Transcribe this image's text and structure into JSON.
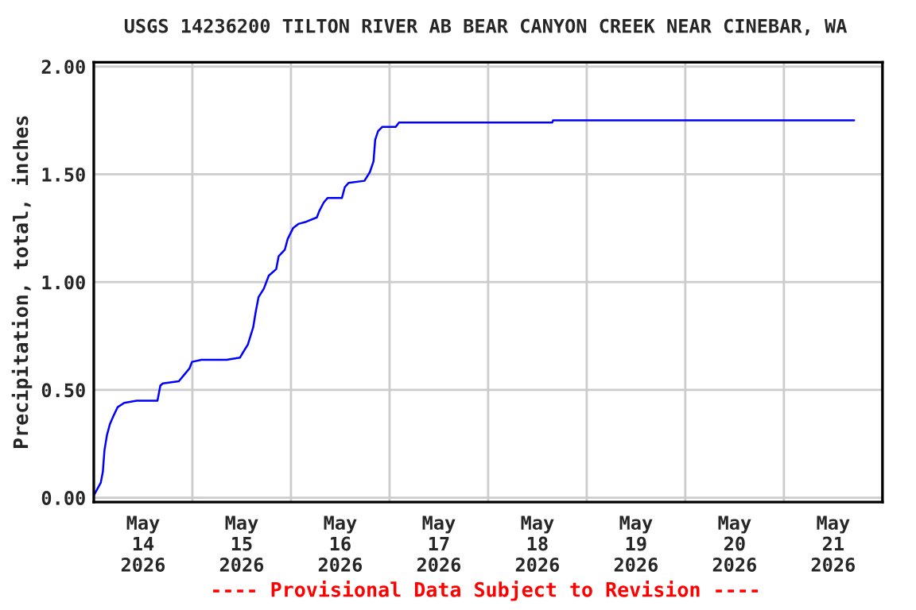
{
  "chart_data": {
    "type": "line",
    "title": "USGS 14236200 TILTON RIVER AB BEAR CANYON CREEK NEAR CINEBAR, WA",
    "ylabel": "Precipitation, total, inches",
    "annotations": [
      "---- Provisional Data Subject to Revision ----"
    ],
    "series": [
      {
        "color": "#0000ff",
        "x": [
          "2026-05-14T00:00",
          "2026-05-14T01:42",
          "2026-05-14T02:12",
          "2026-05-14T02:36",
          "2026-05-14T03:12",
          "2026-05-14T03:54",
          "2026-05-14T04:48",
          "2026-05-14T05:48",
          "2026-05-14T07:24",
          "2026-05-14T10:24",
          "2026-05-14T15:30",
          "2026-05-14T16:12",
          "2026-05-14T16:48",
          "2026-05-14T20:42",
          "2026-05-14T22:00",
          "2026-05-14T23:18",
          "2026-05-14T23:54",
          "2026-05-15T02:12",
          "2026-05-15T08:18",
          "2026-05-15T11:36",
          "2026-05-15T12:12",
          "2026-05-15T13:30",
          "2026-05-15T14:48",
          "2026-05-15T15:24",
          "2026-05-15T16:06",
          "2026-05-15T17:24",
          "2026-05-15T18:36",
          "2026-05-15T20:24",
          "2026-05-15T21:00",
          "2026-05-15T22:30",
          "2026-05-15T23:12",
          "2026-05-16T00:30",
          "2026-05-16T01:48",
          "2026-05-16T03:42",
          "2026-05-16T06:18",
          "2026-05-16T06:54",
          "2026-05-16T08:00",
          "2026-05-16T08:54",
          "2026-05-16T12:24",
          "2026-05-16T13:06",
          "2026-05-16T14:00",
          "2026-05-16T17:54",
          "2026-05-16T19:12",
          "2026-05-16T20:06",
          "2026-05-16T20:30",
          "2026-05-16T21:12",
          "2026-05-16T22:12",
          "2026-05-17T01:30",
          "2026-05-17T02:18",
          "2026-05-18T15:36",
          "2026-05-18T15:48",
          "2026-05-21T17:06"
        ],
        "values": [
          0.01,
          0.07,
          0.12,
          0.22,
          0.29,
          0.34,
          0.38,
          0.42,
          0.44,
          0.45,
          0.45,
          0.52,
          0.53,
          0.54,
          0.57,
          0.6,
          0.63,
          0.64,
          0.64,
          0.65,
          0.67,
          0.71,
          0.79,
          0.86,
          0.93,
          0.97,
          1.03,
          1.06,
          1.12,
          1.15,
          1.2,
          1.25,
          1.27,
          1.28,
          1.3,
          1.33,
          1.37,
          1.39,
          1.39,
          1.44,
          1.46,
          1.47,
          1.51,
          1.56,
          1.66,
          1.7,
          1.72,
          1.72,
          1.74,
          1.74,
          1.75,
          1.75
        ]
      }
    ],
    "xlim": [
      "2026-05-14T00:00",
      "2026-05-22T00:00"
    ],
    "xticks": [
      {
        "value": "2026-05-14T12:00",
        "label": "May\n14\n2026"
      },
      {
        "value": "2026-05-15T00:00",
        "label": null
      },
      {
        "value": "2026-05-15T12:00",
        "label": "May\n15\n2026"
      },
      {
        "value": "2026-05-16T00:00",
        "label": null
      },
      {
        "value": "2026-05-16T12:00",
        "label": "May\n16\n2026"
      },
      {
        "value": "2026-05-17T00:00",
        "label": null
      },
      {
        "value": "2026-05-17T12:00",
        "label": "May\n17\n2026"
      },
      {
        "value": "2026-05-18T00:00",
        "label": null
      },
      {
        "value": "2026-05-18T12:00",
        "label": "May\n18\n2026"
      },
      {
        "value": "2026-05-19T00:00",
        "label": null
      },
      {
        "value": "2026-05-19T12:00",
        "label": "May\n19\n2026"
      },
      {
        "value": "2026-05-20T00:00",
        "label": null
      },
      {
        "value": "2026-05-20T12:00",
        "label": "May\n20\n2026"
      },
      {
        "value": "2026-05-21T00:00",
        "label": null
      },
      {
        "value": "2026-05-21T12:00",
        "label": "May\n21\n2026"
      }
    ],
    "ylim": [
      -0.02,
      2.02
    ],
    "yticks": [
      {
        "value": 0,
        "label": "0.00"
      },
      {
        "value": 0.5,
        "label": "0.50"
      },
      {
        "value": 1.0,
        "label": "1.00"
      },
      {
        "value": 1.5,
        "label": "1.50"
      },
      {
        "value": 2.0,
        "label": "2.00"
      }
    ],
    "grid": true,
    "legend": false
  }
}
